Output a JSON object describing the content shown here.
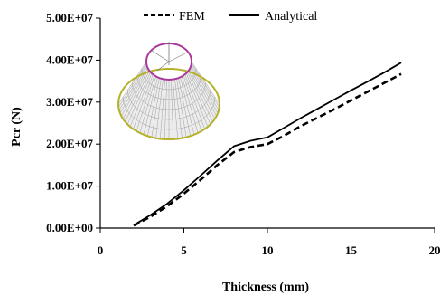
{
  "chart_data": {
    "type": "line",
    "xlabel": "Thickness (mm)",
    "ylabel": "Pcr (N)",
    "xlim": [
      0,
      20
    ],
    "ylim": [
      0,
      50000000
    ],
    "x_ticks": [
      "0",
      "5",
      "10",
      "15",
      "20"
    ],
    "y_ticks": [
      "0.00E+00",
      "1.00E+07",
      "2.00E+07",
      "3.00E+07",
      "4.00E+07",
      "5.00E+07"
    ],
    "grid": false,
    "legend_position": "top",
    "series": [
      {
        "name": "FEM",
        "style": "dashed",
        "x": [
          2,
          3,
          4,
          5,
          6,
          7,
          8,
          9,
          10,
          11,
          12,
          13,
          14,
          15,
          16,
          17,
          18
        ],
        "y": [
          600000,
          2700000,
          5200000,
          8200000,
          11500000,
          15000000,
          18100000,
          19300000,
          20000000,
          22000000,
          24300000,
          26300000,
          28300000,
          30400000,
          32500000,
          34600000,
          36700000
        ]
      },
      {
        "name": "Analytical",
        "style": "solid",
        "x": [
          2,
          3,
          4,
          5,
          6,
          7,
          8,
          9,
          10,
          11,
          12,
          13,
          14,
          15,
          16,
          17,
          18
        ],
        "y": [
          700000,
          3100000,
          5800000,
          9000000,
          12500000,
          16100000,
          19500000,
          20800000,
          21600000,
          23900000,
          26200000,
          28400000,
          30600000,
          32800000,
          34900000,
          37100000,
          39400000
        ]
      }
    ]
  },
  "inset": {
    "icon": "cone-shell-model-icon",
    "top_ring_color": "#a8389a",
    "base_ring_color": "#b5b22a",
    "mesh_color": "#a0a0a0"
  }
}
